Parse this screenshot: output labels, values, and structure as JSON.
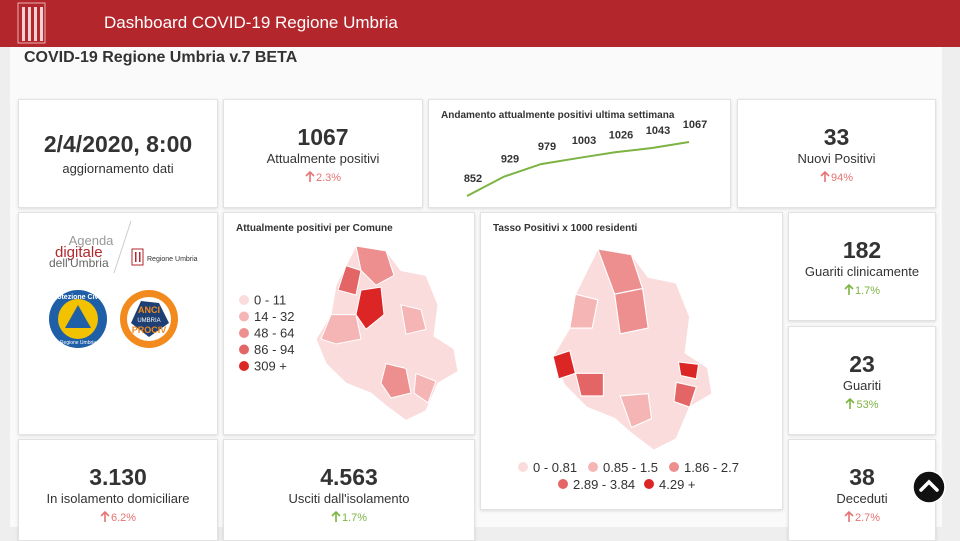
{
  "header": {
    "title": "Dashboard COVID-19 Regione Umbria"
  },
  "page_title": "COVID-19 Regione Umbria v.7 BETA",
  "update": {
    "value": "2/4/2020, 8:00",
    "label": "aggiornamento dati"
  },
  "positive": {
    "value": 1067,
    "label": "Attualmente positivi",
    "change": "2.3%"
  },
  "trend": {
    "title": "Andamento attualmente positivi ultima settimana",
    "values": [
      852,
      929,
      979,
      1003,
      1026,
      1043,
      1067
    ],
    "color": "#7cb342"
  },
  "new_positive": {
    "value": 33,
    "label": "Nuovi Positivi",
    "change": "94%"
  },
  "logos": {
    "agenda": [
      "Agenda",
      "digitale",
      "dell'Umbria"
    ],
    "regione": "Regione Umbria",
    "protezione": [
      "Protezione Civile",
      "Regione Umbria"
    ],
    "anci": [
      "ANCI",
      "UMBRIA",
      "PROCIV"
    ]
  },
  "map_comune": {
    "title": "Attualmente positivi per Comune",
    "legend": [
      {
        "label": "0 - 11",
        "color": "#fbdcdc"
      },
      {
        "label": "14 - 32",
        "color": "#f5b5b5"
      },
      {
        "label": "48 - 64",
        "color": "#ee8f8f"
      },
      {
        "label": "86 - 94",
        "color": "#e46565"
      },
      {
        "label": "309 +",
        "color": "#dc2626"
      }
    ]
  },
  "map_tasso": {
    "title": "Tasso Positivi x 1000 residenti",
    "legend": [
      {
        "label": "0 - 0.81",
        "color": "#fbdcdc"
      },
      {
        "label": "0.85 - 1.5",
        "color": "#f5b5b5"
      },
      {
        "label": "1.86 - 2.7",
        "color": "#ee8f8f"
      },
      {
        "label": "2.89 - 3.84",
        "color": "#e46565"
      },
      {
        "label": "4.29 +",
        "color": "#dc2626"
      }
    ]
  },
  "healed_clinical": {
    "value": 182,
    "label": "Guariti clinicamente",
    "change": "1.7%"
  },
  "healed": {
    "value": 23,
    "label": "Guariti",
    "change": "53%"
  },
  "isolation": {
    "value": "3.130",
    "label": "In isolamento domiciliare",
    "change": "6.2%"
  },
  "out_isolation": {
    "value": "4.563",
    "label": "Usciti dall'isolamento",
    "change": "1.7%"
  },
  "deaths": {
    "value": 38,
    "label": "Deceduti",
    "change": "2.7%"
  }
}
